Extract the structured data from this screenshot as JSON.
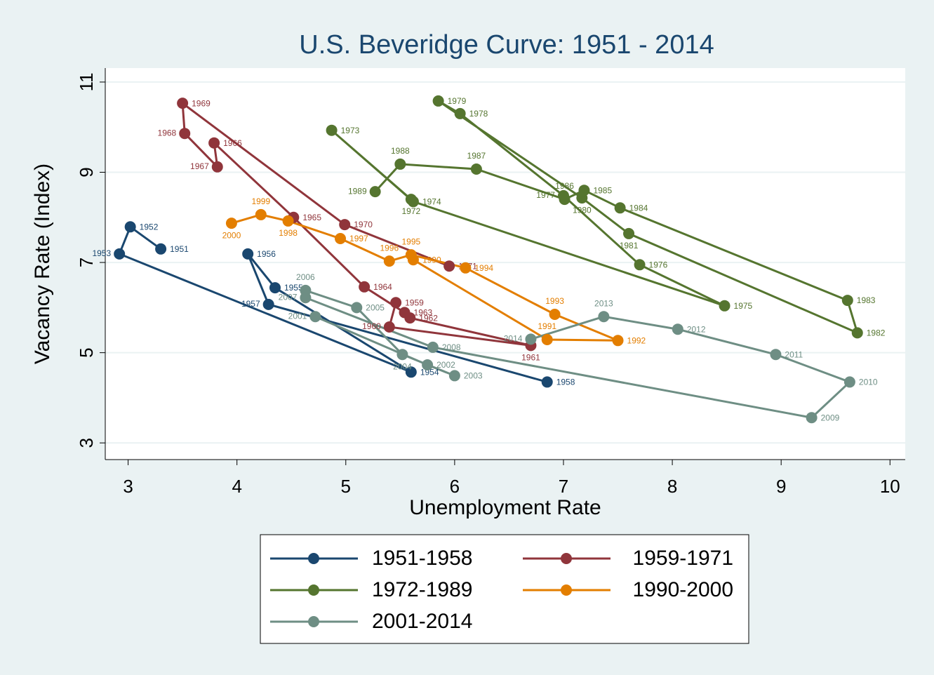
{
  "chart_data": {
    "type": "connected_scatter",
    "title": "U.S. Beveridge Curve: 1951 - 2014",
    "x_label": "Unemployment Rate",
    "y_label": "Vacancy Rate (Index)",
    "xlim": [
      2.79,
      10.14
    ],
    "ylim": [
      2.63,
      11.31
    ],
    "xticks": [
      3,
      4,
      5,
      6,
      7,
      8,
      9,
      10
    ],
    "yticks": [
      3,
      5,
      7,
      9,
      11
    ],
    "grid": true,
    "series": [
      {
        "name": "1951-1958",
        "color": "#1a476f",
        "labels": [
          "1951",
          "1952",
          "1953",
          "1954",
          "1955",
          "1956",
          "1957",
          "1958"
        ],
        "x": [
          3.3,
          3.02,
          2.92,
          5.6,
          4.35,
          4.1,
          4.29,
          6.85
        ],
        "values": [
          7.3,
          7.79,
          7.19,
          4.57,
          6.44,
          7.19,
          6.07,
          4.35
        ]
      },
      {
        "name": "1959-1971",
        "color": "#90353b",
        "labels": [
          "1959",
          "1960",
          "1961",
          "1962",
          "1963",
          "1964",
          "1965",
          "1966",
          "1967",
          "1968",
          "1969",
          "1970",
          "1971"
        ],
        "x": [
          5.46,
          5.4,
          6.7,
          5.59,
          5.54,
          5.17,
          4.52,
          3.79,
          3.82,
          3.52,
          3.5,
          4.99,
          5.95
        ],
        "values": [
          6.11,
          5.57,
          5.16,
          5.77,
          5.89,
          6.46,
          8.0,
          9.65,
          9.12,
          9.86,
          10.53,
          7.84,
          6.92
        ]
      },
      {
        "name": "1972-1989",
        "color": "#55752f",
        "labels": [
          "1972",
          "1973",
          "1974",
          "1975",
          "1976",
          "1977",
          "1978",
          "1979",
          "1980",
          "1981",
          "1982",
          "1983",
          "1984",
          "1985",
          "1986",
          "1987",
          "1988",
          "1989"
        ],
        "x": [
          5.6,
          4.87,
          5.62,
          8.48,
          7.7,
          7.0,
          6.05,
          5.85,
          7.17,
          7.6,
          9.7,
          9.61,
          7.52,
          7.19,
          7.01,
          6.2,
          5.5,
          5.27
        ],
        "values": [
          8.4,
          9.93,
          8.35,
          6.04,
          6.95,
          8.48,
          10.3,
          10.58,
          8.43,
          7.64,
          5.44,
          6.16,
          8.21,
          8.6,
          8.4,
          9.07,
          9.18,
          8.57
        ]
      },
      {
        "name": "1990-2000",
        "color": "#e37e00",
        "labels": [
          "1990",
          "1991",
          "1992",
          "1993",
          "1994",
          "1995",
          "1996",
          "1997",
          "1998",
          "1999",
          "2000"
        ],
        "x": [
          5.62,
          6.85,
          7.5,
          6.92,
          6.1,
          5.6,
          5.4,
          4.95,
          4.47,
          4.22,
          3.95
        ],
        "values": [
          7.06,
          5.29,
          5.27,
          5.85,
          6.88,
          7.17,
          7.03,
          7.53,
          7.92,
          8.06,
          7.87
        ]
      },
      {
        "name": "2001-2014",
        "color": "#6e8e84",
        "labels": [
          "2001",
          "2002",
          "2003",
          "2004",
          "2005",
          "2006",
          "2007",
          "2008",
          "2009",
          "2010",
          "2011",
          "2012",
          "2013",
          "2014"
        ],
        "x": [
          4.72,
          5.75,
          6.0,
          5.52,
          5.1,
          4.63,
          4.63,
          5.8,
          9.28,
          9.63,
          8.95,
          8.05,
          7.37,
          6.7
        ],
        "values": [
          5.8,
          4.73,
          4.49,
          4.96,
          6.0,
          6.38,
          6.22,
          5.12,
          3.56,
          4.35,
          4.96,
          5.52,
          5.8,
          5.3
        ]
      }
    ]
  }
}
